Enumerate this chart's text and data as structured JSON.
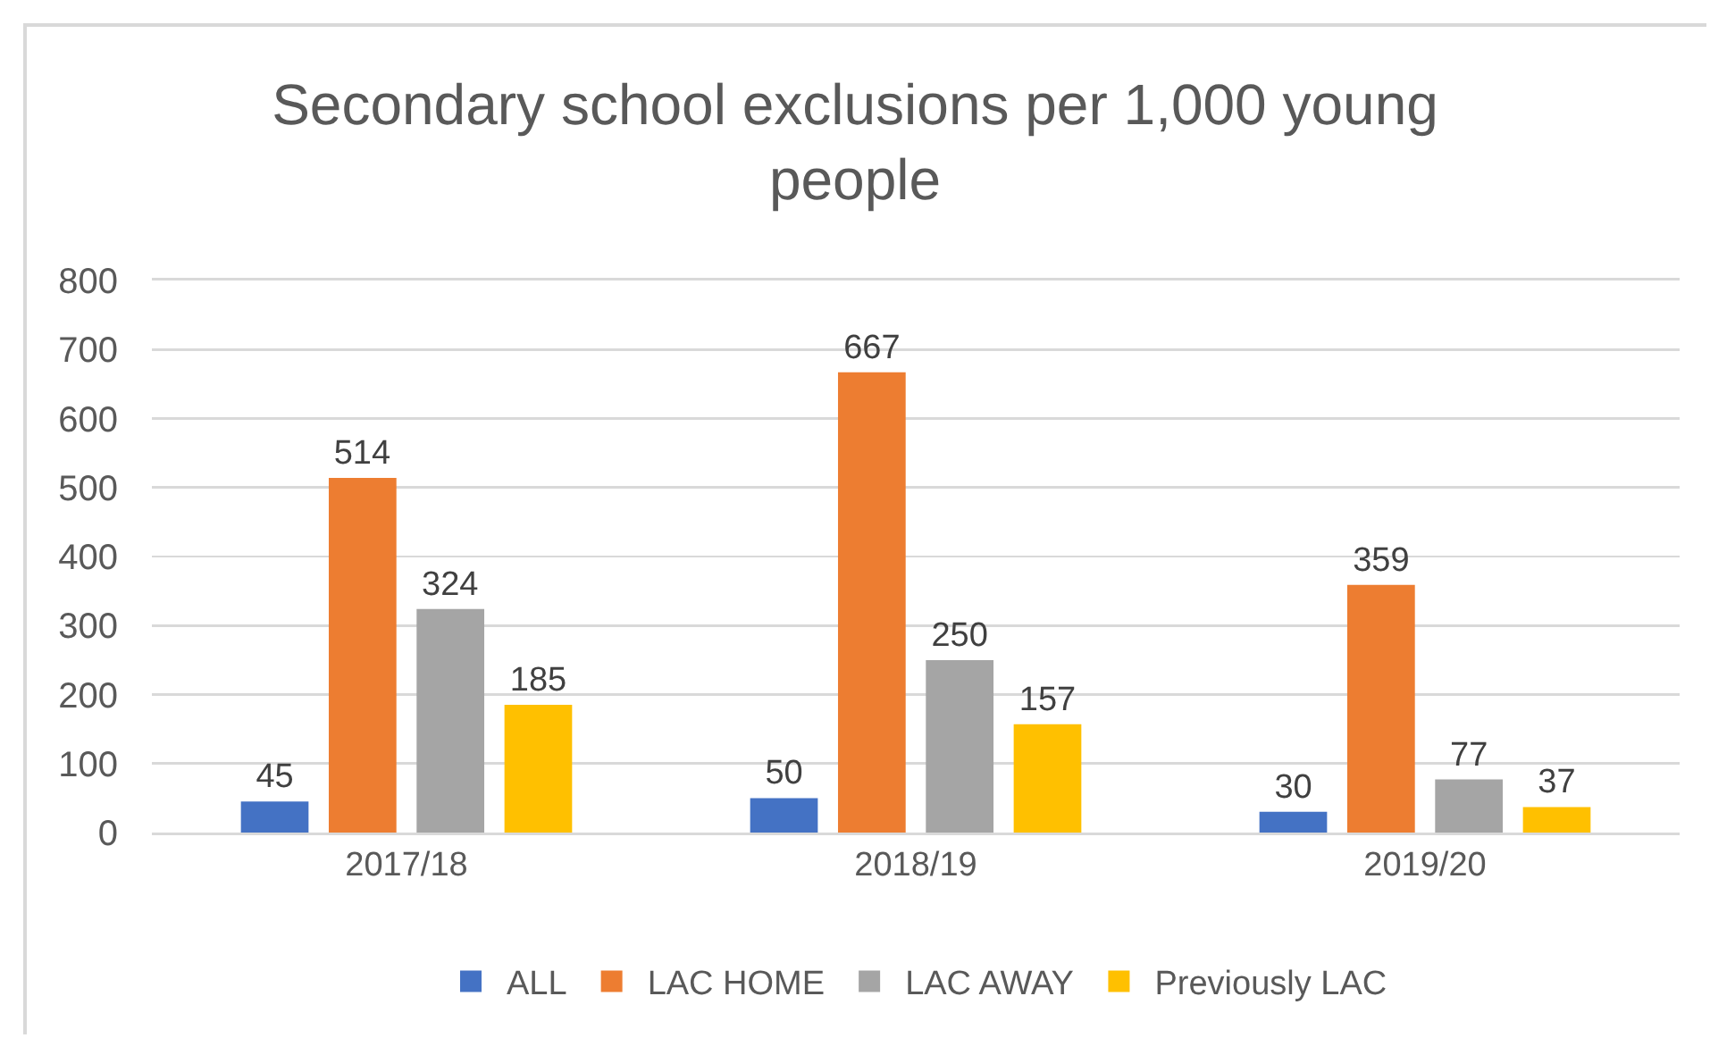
{
  "chart_data": {
    "type": "bar",
    "title": "Secondary school exclusions per 1,000 young people",
    "categories": [
      "2017/18",
      "2018/19",
      "2019/20"
    ],
    "series": [
      {
        "name": "ALL",
        "color": "#4472c4",
        "values": [
          45,
          50,
          30
        ]
      },
      {
        "name": "LAC HOME",
        "color": "#ed7d31",
        "values": [
          514,
          667,
          359
        ]
      },
      {
        "name": "LAC AWAY",
        "color": "#a5a5a5",
        "values": [
          324,
          250,
          77
        ]
      },
      {
        "name": "Previously LAC",
        "color": "#ffc000",
        "values": [
          185,
          157,
          37
        ]
      }
    ],
    "ylim": [
      0,
      800
    ],
    "yticks": [
      0,
      100,
      200,
      300,
      400,
      500,
      600,
      700,
      800
    ],
    "grid": "y",
    "legend": "bottom",
    "data_labels": true
  }
}
